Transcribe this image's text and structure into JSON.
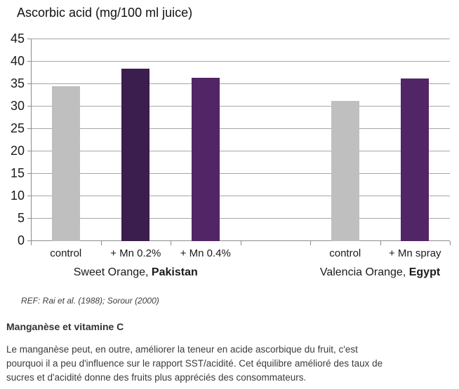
{
  "chart_data": {
    "type": "bar",
    "title": "Ascorbic acid (mg/100 ml juice)",
    "categories": [
      "control",
      "+ Mn 0.2%",
      "+ Mn 0.4%",
      "",
      "control",
      "+ Mn spray"
    ],
    "values": [
      34.5,
      38.5,
      36.4,
      null,
      31.2,
      36.3
    ],
    "bar_colors": [
      "#bfbfbf",
      "#3b1e4e",
      "#522566",
      null,
      "#bfbfbf",
      "#522566"
    ],
    "groups": [
      {
        "prefix": "Sweet Orange, ",
        "bold": "Pakistan",
        "center_slot": 1.5
      },
      {
        "prefix": "Valencia Orange, ",
        "bold": "Egypt",
        "center_slot": 5.0
      }
    ],
    "xlabel": "",
    "ylabel": "",
    "ylim": [
      0,
      45
    ],
    "ytick_step": 5,
    "grid": true,
    "legend": "none"
  },
  "ref_note": "REF: Rai et al. (1988);  Sorour (2000)",
  "section": {
    "heading": "Manganèse et vitamine C",
    "paragraph_lines": [
      "Le manganèse peut, en outre, améliorer la teneur en acide ascorbique du fruit, c'est",
      "pourquoi il a peu d'influence sur le rapport SST/acidité. Cet équilibre amélioré des taux de",
      "sucres et d'acidité donne des fruits plus appréciés des consommateurs."
    ]
  },
  "colors": {
    "grid": "#a6a6a6",
    "axis": "#8c8c8c",
    "chart_text": "#1a1a1a",
    "bar_gray": "#bfbfbf",
    "bar_dark_purple": "#3b1e4e",
    "bar_purple": "#522566"
  }
}
